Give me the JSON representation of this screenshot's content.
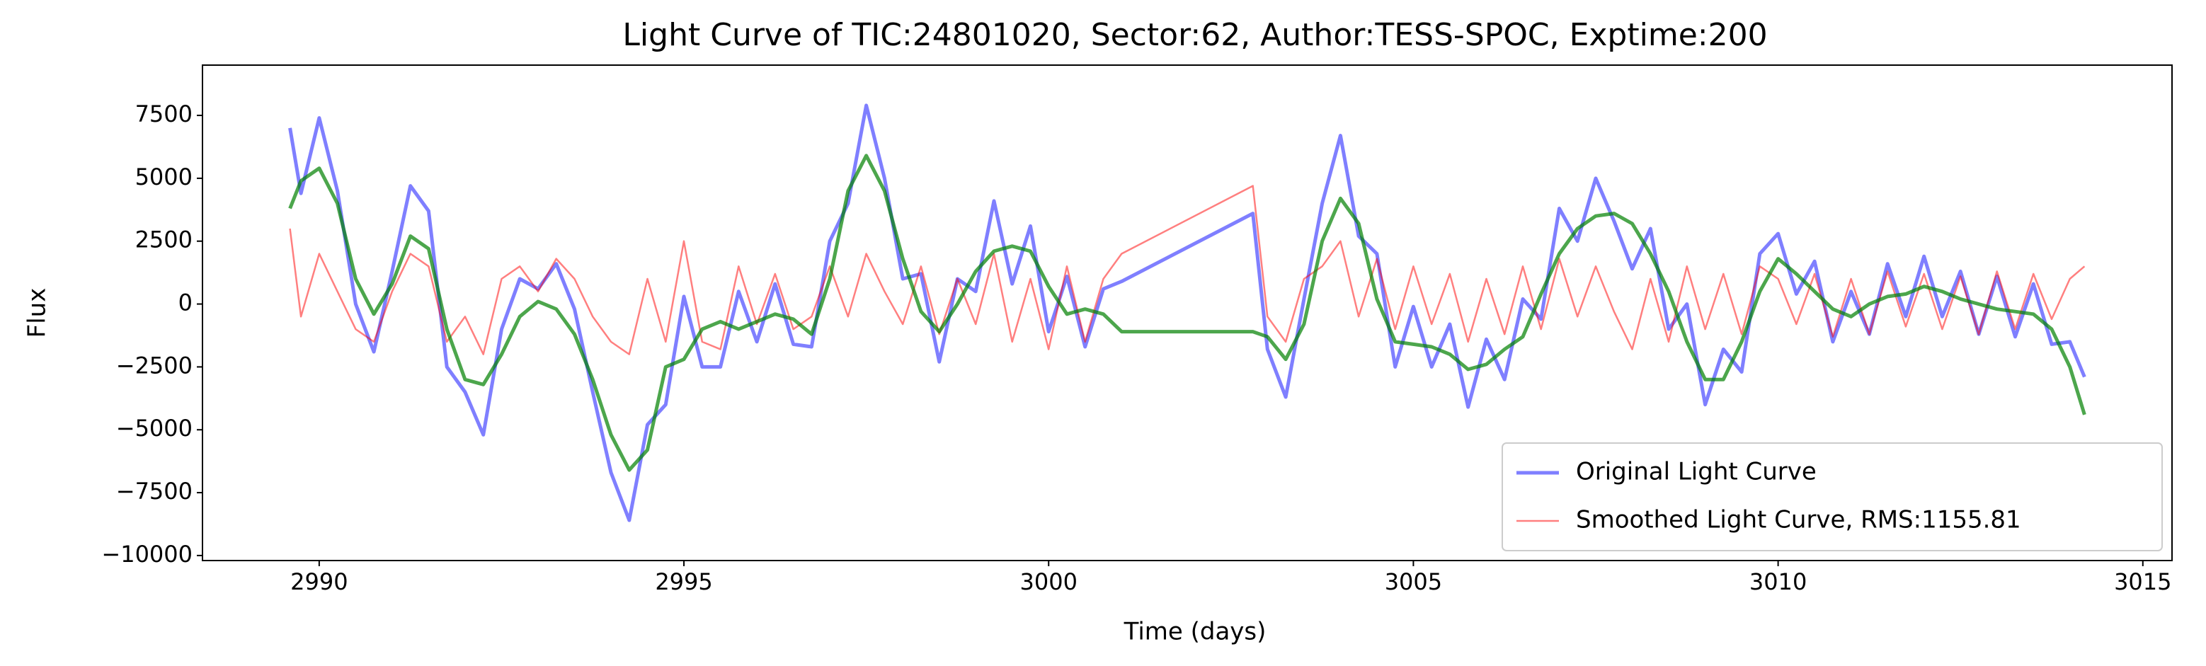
{
  "chart_data": {
    "type": "line",
    "title": "Light Curve of TIC:24801020, Sector:62, Author:TESS-SPOC, Exptime:200",
    "xlabel": "Time (days)",
    "ylabel": "Flux",
    "x": [
      2989.6,
      2989.75,
      2990.0,
      2990.25,
      2990.5,
      2990.75,
      2991.0,
      2991.25,
      2991.5,
      2991.75,
      2992.0,
      2992.25,
      2992.5,
      2992.75,
      2993.0,
      2993.25,
      2993.5,
      2993.75,
      2994.0,
      2994.25,
      2994.5,
      2994.75,
      2995.0,
      2995.25,
      2995.5,
      2995.75,
      2996.0,
      2996.25,
      2996.5,
      2996.75,
      2997.0,
      2997.25,
      2997.5,
      2997.75,
      2998.0,
      2998.25,
      2998.5,
      2998.75,
      2999.0,
      2999.25,
      2999.5,
      2999.75,
      3000.0,
      3000.25,
      3000.5,
      3000.75,
      3001.0,
      3002.8,
      3003.0,
      3003.25,
      3003.5,
      3003.75,
      3004.0,
      3004.25,
      3004.5,
      3004.75,
      3005.0,
      3005.25,
      3005.5,
      3005.75,
      3006.0,
      3006.25,
      3006.5,
      3006.75,
      3007.0,
      3007.25,
      3007.5,
      3007.75,
      3008.0,
      3008.25,
      3008.5,
      3008.75,
      3009.0,
      3009.25,
      3009.5,
      3009.75,
      3010.0,
      3010.25,
      3010.5,
      3010.75,
      3011.0,
      3011.25,
      3011.5,
      3011.75,
      3012.0,
      3012.25,
      3012.5,
      3012.75,
      3013.0,
      3013.25,
      3013.5,
      3013.75,
      3014.0,
      3014.2
    ],
    "series": [
      {
        "name": "Original Light Curve",
        "color": "#0000ff",
        "values": [
          7000,
          4400,
          7400,
          4500,
          0,
          -1900,
          1300,
          4700,
          3700,
          -2500,
          -3500,
          -5200,
          -1000,
          1000,
          600,
          1600,
          -200,
          -3500,
          -6700,
          -8600,
          -4800,
          -4000,
          300,
          -2500,
          -2500,
          500,
          -1500,
          800,
          -1600,
          -1700,
          2500,
          4000,
          7900,
          5000,
          1000,
          1200,
          -2300,
          1000,
          500,
          4100,
          800,
          3100,
          -1100,
          1100,
          -1700,
          600,
          900,
          3600,
          -1800,
          -3700,
          200,
          4000,
          6700,
          2700,
          2000,
          -2500,
          -100,
          -2500,
          -800,
          -4100,
          -1400,
          -3000,
          200,
          -600,
          3800,
          2500,
          5000,
          3300,
          1400,
          3000,
          -1000,
          0,
          -4000,
          -1800,
          -2700,
          2000,
          2800,
          400,
          1700,
          -1500,
          500,
          -1200,
          1600,
          -500,
          1900,
          -500,
          1300,
          -1200,
          1100,
          -1300,
          800,
          -1600,
          -1500,
          -2900
        ]
      },
      {
        "name": "Smoothed Light Curve, RMS:1155.81",
        "color": "#ff0000",
        "values": [
          3000,
          -500,
          2000,
          500,
          -1000,
          -1500,
          500,
          2000,
          1500,
          -1500,
          -500,
          -2000,
          1000,
          1500,
          500,
          1800,
          1000,
          -500,
          -1500,
          -2000,
          1000,
          -1500,
          2500,
          -1500,
          -1800,
          1500,
          -800,
          1200,
          -1000,
          -500,
          1500,
          -500,
          2000,
          500,
          -800,
          1500,
          -1200,
          1000,
          -800,
          2000,
          -1500,
          1000,
          -1800,
          1500,
          -1500,
          1000,
          2000,
          4700,
          -500,
          -1500,
          1000,
          1500,
          2500,
          -500,
          1800,
          -1000,
          1500,
          -800,
          1200,
          -1500,
          1000,
          -1200,
          1500,
          -1000,
          1800,
          -500,
          1500,
          -300,
          -1800,
          1000,
          -1500,
          1500,
          -1000,
          1200,
          -1200,
          1500,
          1000,
          -800,
          1200,
          -1300,
          1000,
          -1200,
          1300,
          -900,
          1200,
          -1000,
          1100,
          -1200,
          1300,
          -1000,
          1200,
          -600,
          1000,
          1500
        ]
      },
      {
        "color": "#008000",
        "values": [
          3800,
          4900,
          5400,
          4000,
          1000,
          -400,
          800,
          2700,
          2200,
          -1000,
          -3000,
          -3200,
          -2000,
          -500,
          100,
          -200,
          -1200,
          -3000,
          -5200,
          -6600,
          -5800,
          -2500,
          -2200,
          -1000,
          -700,
          -1000,
          -700,
          -400,
          -600,
          -1200,
          1000,
          4500,
          5900,
          4500,
          1800,
          -300,
          -1100,
          0,
          1300,
          2100,
          2300,
          2100,
          700,
          -400,
          -200,
          -400,
          -1100,
          -1100,
          -1300,
          -2200,
          -800,
          2500,
          4200,
          3200,
          200,
          -1500,
          -1600,
          -1700,
          -2000,
          -2600,
          -2400,
          -1800,
          -1300,
          400,
          2000,
          3000,
          3500,
          3600,
          3200,
          2000,
          500,
          -1500,
          -3000,
          -3000,
          -1500,
          500,
          1800,
          1200,
          500,
          -200,
          -500,
          0,
          300,
          400,
          700,
          500,
          200,
          0,
          -200,
          -300,
          -400,
          -1000,
          -2500,
          -4400
        ]
      }
    ],
    "xlim": [
      2988.4,
      3015.4
    ],
    "xticks": [
      2990,
      2995,
      3000,
      3005,
      3010,
      3015
    ],
    "ylim": [
      -10200,
      9500
    ],
    "yticks": [
      {
        "value": -10000,
        "label": "−10000"
      },
      {
        "value": -7500,
        "label": "−7500"
      },
      {
        "value": -5000,
        "label": "−5000"
      },
      {
        "value": -2500,
        "label": "−2500"
      },
      0,
      2500,
      5000,
      7500
    ],
    "legend": "lower right",
    "grid": false
  }
}
